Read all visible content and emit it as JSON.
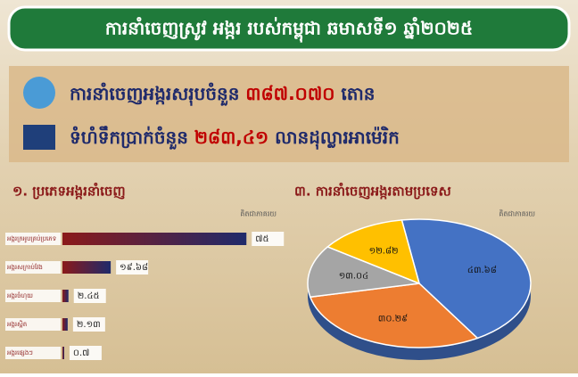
{
  "header": {
    "title": "ការនាំចេញស្រូវ អង្ករ របស់កម្ពុជា ឆមាសទី១ ឆ្នាំ២០២៥",
    "stat1": {
      "text": "ការនាំចេញអង្ករសរុបចំនួន",
      "value": "៣៨៧.០៧០",
      "unit": "តោន"
    },
    "stat2": {
      "text": "ទំហំទឹកប្រាក់ចំនួន",
      "value": "២៨៣,៤១",
      "unit": "លានដុល្លារអាម៉េរិក"
    }
  },
  "chart_data": [
    {
      "type": "bar",
      "title": "១. ប្រភេទអង្ករនាំចេញ",
      "subtitle": "គិតជាភាគរយ",
      "categories": [
        "អង្ករក្រអូបគ្រប់ប្រភេទ",
        "អង្ករសក្រាប់វែង",
        "អង្ករចំហុយ",
        "អង្ករស្អិត",
        "អង្ករផ្សេងៗ"
      ],
      "values": [
        75,
        19.68,
        2.45,
        2.13,
        0.7
      ],
      "value_labels": [
        "៧៥",
        "១៩.៦៨",
        "២.៤៥",
        "២.១៣",
        "០.៧"
      ],
      "color": [
        "#8b1a1a",
        "#1f2a6b"
      ],
      "xlim": [
        0,
        80
      ]
    },
    {
      "type": "pie",
      "title": "៣. ការនាំចេញអង្ករតាមប្រទេស",
      "subtitle": "គិតជាភាគរយ",
      "values": [
        43.68,
        30.29,
        13.04,
        12.82
      ],
      "value_labels": [
        "៤៣.៦៨",
        "៣០.២៩",
        "១៣.០៤",
        "១២.៨២"
      ],
      "colors": [
        "#4472c4",
        "#ed7d31",
        "#a5a5a5",
        "#ffc000"
      ]
    }
  ]
}
